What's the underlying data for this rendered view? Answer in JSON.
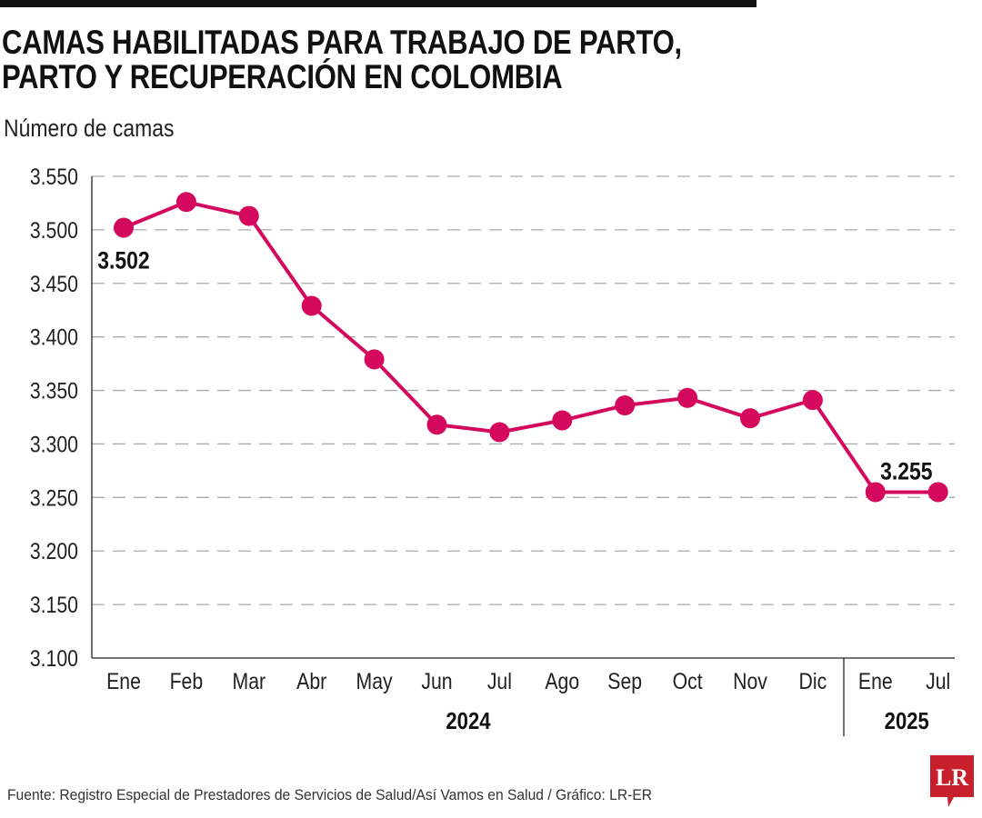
{
  "title_line1": "CAMAS HABILITADAS PARA TRABAJO DE PARTO,",
  "title_line2": "PARTO Y RECUPERACIÓN EN COLOMBIA",
  "source": "Fuente: Registro Especial de Prestadores de Servicios de Salud/Así Vamos en Salud / Gráfico: LR-ER",
  "logo_text": "LR",
  "colors": {
    "line": "#d4085d",
    "logo": "#c8202b",
    "grid": "#aaaaaa"
  },
  "chart_data": {
    "type": "line",
    "title": "CAMAS HABILITADAS PARA TRABAJO DE PARTO, PARTO Y RECUPERACIÓN EN COLOMBIA",
    "ylabel": "Número de camas",
    "categories": [
      "Ene",
      "Feb",
      "Mar",
      "Abr",
      "May",
      "Jun",
      "Jul",
      "Ago",
      "Sep",
      "Oct",
      "Nov",
      "Dic",
      "Ene",
      "Jul"
    ],
    "years": [
      {
        "label": "2024",
        "from": 0,
        "to": 11
      },
      {
        "label": "2025",
        "from": 12,
        "to": 13
      }
    ],
    "values": [
      3502,
      3526,
      3513,
      3429,
      3379,
      3318,
      3311,
      3322,
      3336,
      3343,
      3324,
      3341,
      3255,
      3255
    ],
    "data_labels": [
      {
        "index": 0,
        "text": "3.502"
      },
      {
        "index": 12,
        "text": "3.255"
      }
    ],
    "ylim": [
      3100,
      3550
    ],
    "yticks": [
      "3.100",
      "3.150",
      "3.200",
      "3.250",
      "3.300",
      "3.350",
      "3.400",
      "3.450",
      "3.500",
      "3.550"
    ],
    "grid": true,
    "legend": "none"
  }
}
